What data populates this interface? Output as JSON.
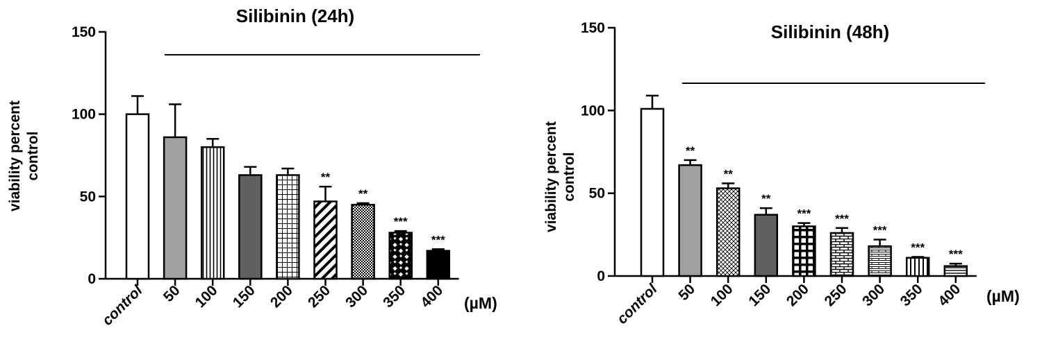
{
  "chart_data": [
    {
      "type": "bar",
      "title": "Silibinin (24h)",
      "ylabel": "viability percent control",
      "ylabel_lines": [
        "viability percent",
        "control"
      ],
      "xunit": "(µM)",
      "categories": [
        "control",
        "50",
        "100",
        "150",
        "200",
        "250",
        "300",
        "350",
        "400"
      ],
      "values": [
        100,
        86,
        80,
        63,
        63,
        47,
        45,
        28,
        17
      ],
      "errors": [
        11,
        20,
        5,
        5,
        4,
        9,
        1,
        1,
        1
      ],
      "significance": [
        "",
        "",
        "",
        "",
        "",
        "**",
        "**",
        "***",
        "***"
      ],
      "patterns": [
        "white",
        "gray",
        "vlines",
        "dark",
        "grid",
        "diag",
        "dots",
        "checker",
        "black"
      ],
      "ylim": [
        0,
        150
      ],
      "yticks": [
        0,
        50,
        100,
        150
      ],
      "grid": false
    },
    {
      "type": "bar",
      "title": "Silibinin (48h)",
      "ylabel": "viability percent control",
      "ylabel_lines": [
        "viability percent",
        "control"
      ],
      "xunit": "(µM)",
      "categories": [
        "control",
        "50",
        "100",
        "150",
        "200",
        "250",
        "300",
        "350",
        "400"
      ],
      "values": [
        101,
        67,
        53,
        37,
        30,
        26,
        18,
        11,
        6
      ],
      "errors": [
        8,
        3,
        3,
        4,
        2,
        3,
        4,
        0.5,
        1.5
      ],
      "significance": [
        "",
        "**",
        "**",
        "**",
        "***",
        "***",
        "***",
        "***",
        "***"
      ],
      "patterns": [
        "white",
        "gray",
        "crosshatch",
        "dark",
        "bigcheck",
        "brick",
        "hbrick",
        "vlines2",
        "hlines"
      ],
      "ylim": [
        0,
        150
      ],
      "yticks": [
        0,
        50,
        100,
        150
      ],
      "grid": false
    }
  ],
  "colors": {
    "ink": "#000000",
    "gray_fill": "#a0a0a0",
    "dark_fill": "#606060"
  }
}
